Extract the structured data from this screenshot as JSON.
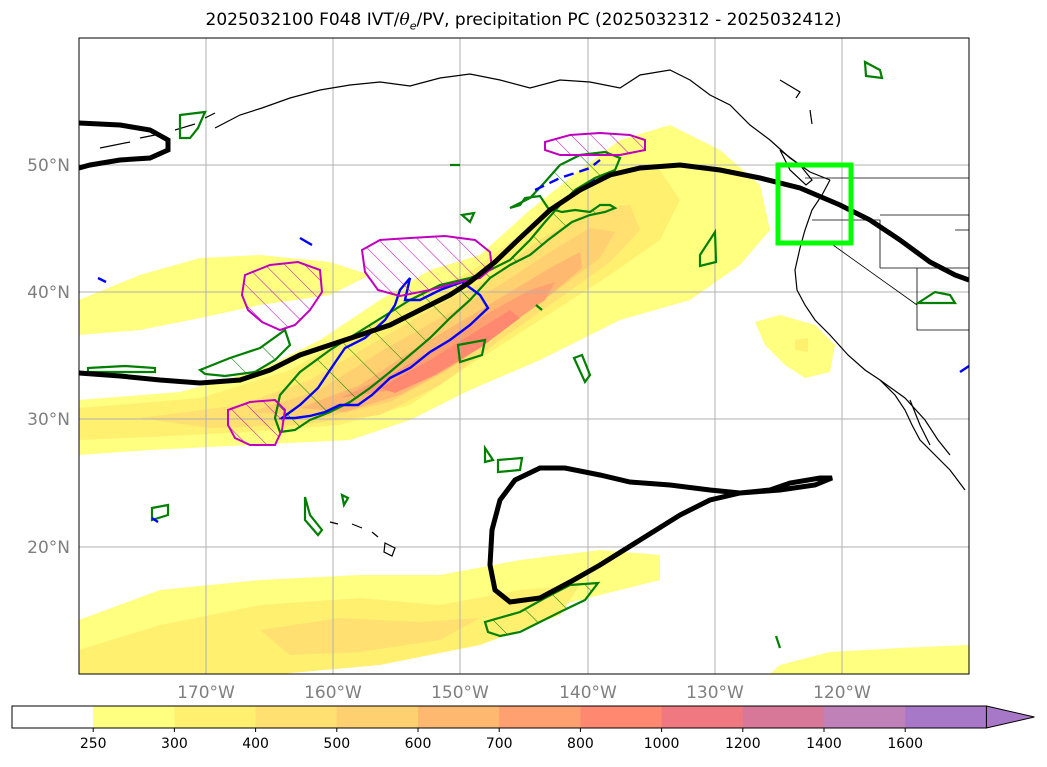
{
  "title": {
    "prefix": "2025032100 F048 IVT/",
    "theta_symbol": "θ",
    "theta_sub": "e",
    "suffix": "/PV, precipitation PC (2025032312 - 2025032412)"
  },
  "map": {
    "lon_range": [
      -180,
      -110
    ],
    "lat_range": [
      10,
      60
    ],
    "lat_gridlines": [
      20,
      30,
      40,
      50
    ],
    "lon_gridlines": [
      -170,
      -160,
      -150,
      -140,
      -130,
      -120
    ],
    "lat_labels": [
      "20°N",
      "30°N",
      "40°N",
      "50°N"
    ],
    "lon_labels": [
      "170°W",
      "160°W",
      "150°W",
      "140°W",
      "130°W",
      "120°W"
    ],
    "highlight_box_color": "#00ff00",
    "pv_contour_color": "#000000",
    "theta_contour_color": "#007f00",
    "precip_hatch_color": "#c000c0",
    "blue_contour_color": "#0000ff"
  },
  "colorbar": {
    "tick_labels": [
      "250",
      "300",
      "400",
      "500",
      "600",
      "700",
      "800",
      "1000",
      "1200",
      "1400",
      "1600"
    ],
    "colors": [
      "#ffffff",
      "#ffff80",
      "#fff070",
      "#ffe070",
      "#ffd070",
      "#ffb870",
      "#ffa070",
      "#ff8870",
      "#f07880",
      "#d87898",
      "#c080b8",
      "#a878c8"
    ]
  }
}
